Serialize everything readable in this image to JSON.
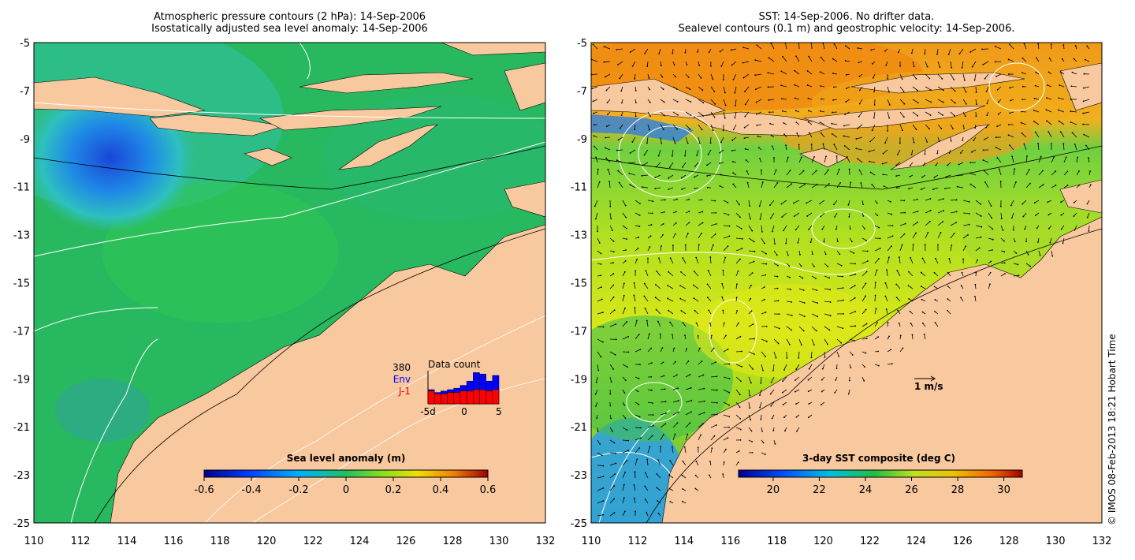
{
  "left_panel": {
    "title_line1": "Atmospheric pressure contours (2 hPa): 14-Sep-2006",
    "title_line2": "Isostatically adjusted sea level anomaly: 14-Sep-2006",
    "colorbar_label": "Sea level anomaly (m)",
    "colorbar_ticks": [
      "-0.6",
      "-0.4",
      "-0.2",
      "0",
      "0.2",
      "0.4",
      "0.6"
    ],
    "inset": {
      "title": "Data count",
      "count": "380",
      "env_label": "Env",
      "j1_label": "J-1",
      "x_ticks": [
        "-5d",
        "0",
        "5"
      ],
      "env_color": "#0000ff",
      "j1_color": "#ff0000",
      "env_values": [
        10,
        8,
        9,
        10,
        11,
        13,
        16,
        22,
        21,
        16,
        20
      ],
      "j1_values": [
        9,
        7,
        7,
        8,
        8,
        9,
        9,
        10,
        10,
        9,
        10
      ]
    }
  },
  "right_panel": {
    "title_line1": "SST: 14-Sep-2006. No drifter data.",
    "title_line2": "Sealevel contours (0.1 m) and geostrophic velocity: 14-Sep-2006.",
    "colorbar_label": "3-day SST composite (deg C)",
    "colorbar_ticks": [
      "20",
      "22",
      "24",
      "26",
      "28",
      "30"
    ],
    "velocity_scale_label": "1 m/s"
  },
  "axes": {
    "lat_ticks": [
      "-5",
      "-7",
      "-9",
      "-11",
      "-13",
      "-15",
      "-17",
      "-19",
      "-21",
      "-23",
      "-25"
    ],
    "lon_ticks": [
      "110",
      "112",
      "114",
      "116",
      "118",
      "120",
      "122",
      "124",
      "126",
      "128",
      "130",
      "132"
    ],
    "lon_range": [
      110,
      132
    ],
    "lat_range": [
      -25,
      -5
    ]
  },
  "credit": "© IMOS 08-Feb-2013 18:21 Hobart Time",
  "colors": {
    "land": "#f8c89f",
    "sla_ocean": "#22b85a",
    "sla_low": "#1060e0",
    "sst_warm": "#f0a020",
    "sst_mid": "#c8e020",
    "sst_cool": "#50c040"
  }
}
